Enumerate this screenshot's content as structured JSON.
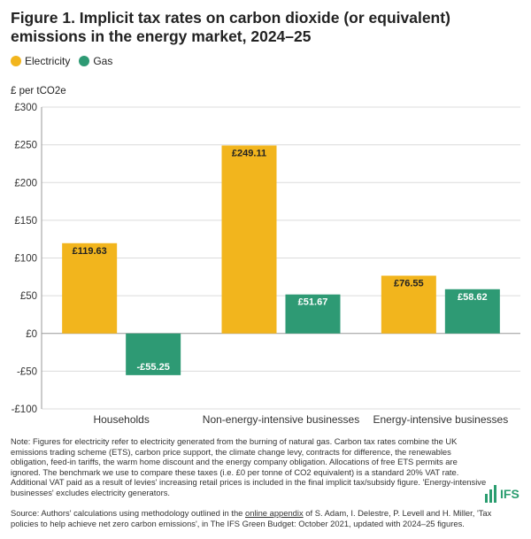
{
  "figure": {
    "title": "Figure 1. Implicit tax rates on carbon dioxide (or equivalent) emissions in the energy market, 2024–25",
    "unit_label": "£ per tCO2e",
    "legend": [
      {
        "label": "Electricity",
        "color": "#f2b51d"
      },
      {
        "label": "Gas",
        "color": "#2e9a74"
      }
    ],
    "note": "Note: Figures for electricity refer to electricity generated from the burning of natural gas. Carbon tax rates combine the UK emissions trading scheme (ETS), carbon price support, the climate change levy, contracts for difference, the renewables obligation, feed-in tariffs, the warm home discount and the energy company obligation. Allocations of free ETS permits are ignored. The benchmark we use to compare these taxes (i.e. £0 per tonne of CO2 equivalent) is a standard 20% VAT rate. Additional VAT paid as a result of levies' increasing retail prices is included in the final implicit tax/subsidy figure. 'Energy-intensive businesses' excludes electricity generators.",
    "source_prefix": "Source: Authors' calculations using methodology outlined in the ",
    "source_link": "online appendix",
    "source_suffix": " of S. Adam, I. Delestre, P. Levell and H. Miller, 'Tax policies to help achieve net zero carbon emissions', in The IFS Green Budget: October 2021, updated with 2024–25 figures.",
    "logo_text": "IFS"
  },
  "chart_data": {
    "type": "bar",
    "title": "Figure 1. Implicit tax rates on carbon dioxide (or equivalent) emissions in the energy market, 2024–25",
    "ylabel": "£ per tCO2e",
    "xlabel": "",
    "categories": [
      "Households",
      "Non-energy-intensive businesses",
      "Energy-intensive businesses"
    ],
    "series": [
      {
        "name": "Electricity",
        "color": "#f2b51d",
        "values": [
          119.63,
          249.11,
          76.55
        ],
        "labels": [
          "£119.63",
          "£249.11",
          "£76.55"
        ]
      },
      {
        "name": "Gas",
        "color": "#2e9a74",
        "values": [
          -55.25,
          51.67,
          58.62
        ],
        "labels": [
          "-£55.25",
          "£51.67",
          "£58.62"
        ]
      }
    ],
    "ylim": [
      -100,
      300
    ],
    "yticks": [
      -100,
      -50,
      0,
      50,
      100,
      150,
      200,
      250,
      300
    ],
    "ytick_labels": [
      "-£100",
      "-£50",
      "£0",
      "£50",
      "£100",
      "£150",
      "£200",
      "£250",
      "£300"
    ],
    "grid": true,
    "legend_position": "top-left"
  }
}
